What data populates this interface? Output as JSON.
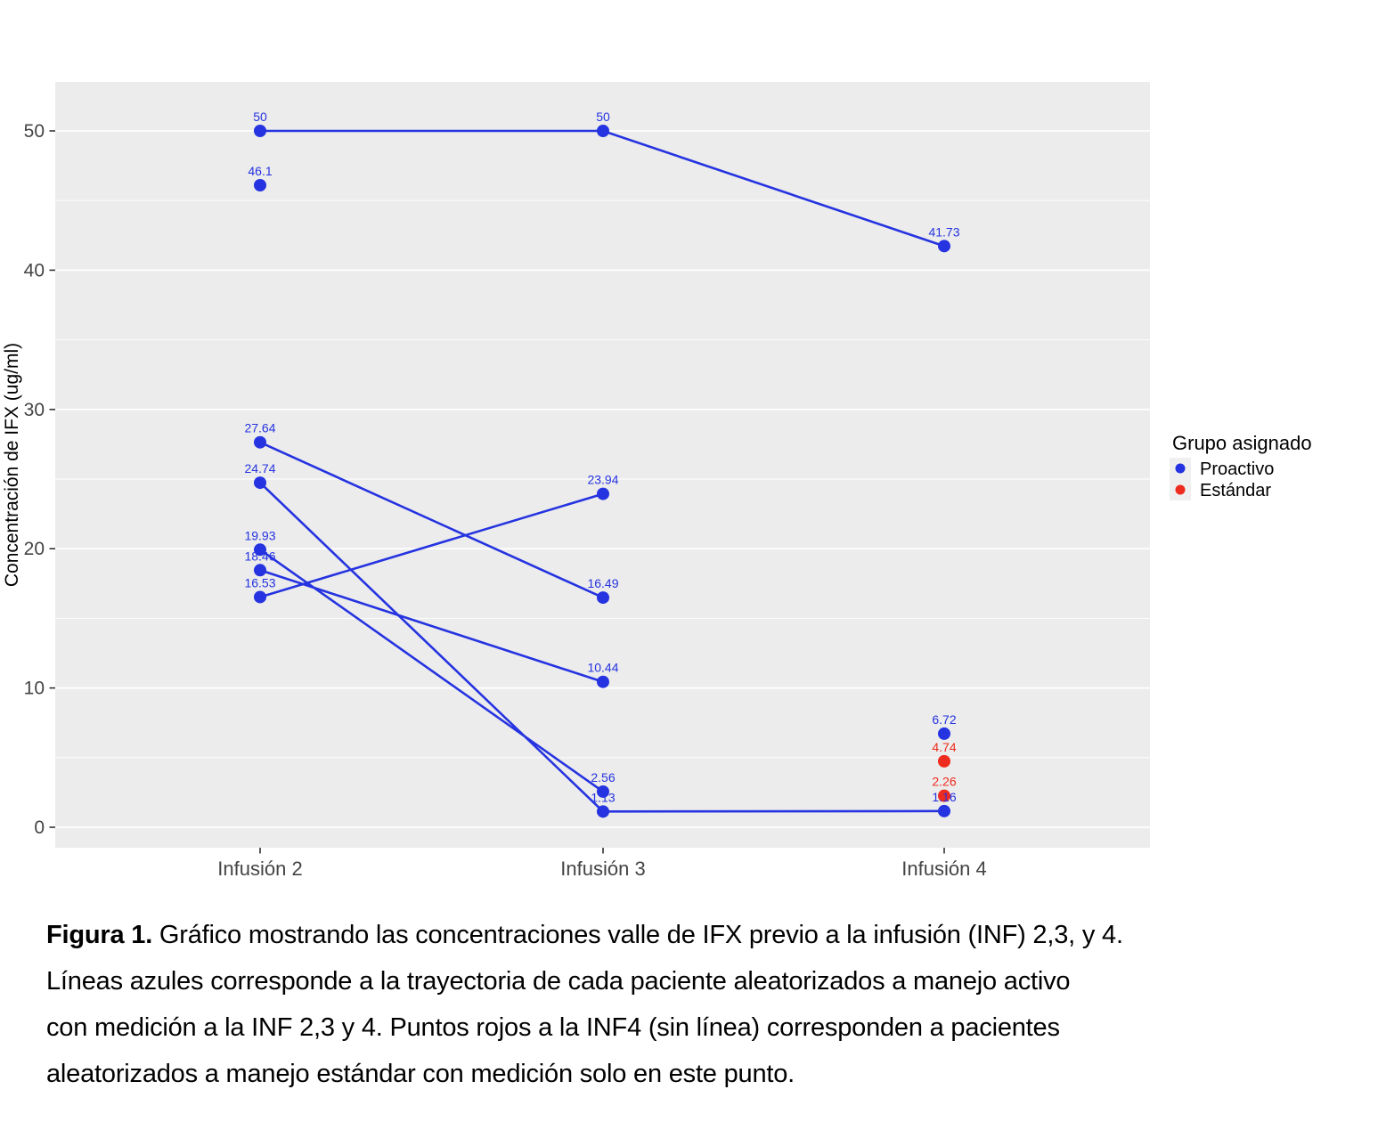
{
  "chart_data": {
    "type": "line",
    "title": "",
    "xlabel": "",
    "ylabel": "Concentración de IFX (ug/ml)",
    "categories": [
      "Infusión 2",
      "Infusión 3",
      "Infusión 4"
    ],
    "ylim": [
      0,
      50
    ],
    "yticks": [
      0,
      10,
      20,
      30,
      40,
      50
    ],
    "minor_ticks": [
      5,
      15,
      25,
      35,
      45
    ],
    "grid": true,
    "legend": {
      "title": "Grupo asignado",
      "position": "right",
      "entries": [
        {
          "label": "Proactivo",
          "color": "#2533E0"
        },
        {
          "label": "Estándar",
          "color": "#ED2B1E"
        }
      ]
    },
    "colors": {
      "Proactivo": "#2533E0",
      "Estándar": "#ED2B1E"
    },
    "series": [
      {
        "group": "Proactivo",
        "values": [
          50,
          50,
          41.73
        ]
      },
      {
        "group": "Proactivo",
        "values": [
          46.1,
          null,
          null
        ]
      },
      {
        "group": "Proactivo",
        "values": [
          27.64,
          16.49,
          null
        ]
      },
      {
        "group": "Proactivo",
        "values": [
          24.74,
          1.13,
          1.16
        ]
      },
      {
        "group": "Proactivo",
        "values": [
          19.93,
          2.56,
          null
        ]
      },
      {
        "group": "Proactivo",
        "values": [
          18.46,
          10.44,
          null
        ]
      },
      {
        "group": "Proactivo",
        "values": [
          16.53,
          23.94,
          null
        ]
      },
      {
        "group": "Proactivo",
        "values": [
          null,
          null,
          6.72
        ]
      },
      {
        "group": "Estándar",
        "values": [
          null,
          null,
          4.74
        ]
      },
      {
        "group": "Estándar",
        "values": [
          null,
          null,
          2.26
        ]
      }
    ]
  },
  "caption": {
    "label": "Figura 1.",
    "line1": " Gráfico mostrando las concentraciones valle de IFX previo a la infusión (INF) 2,3, y 4.",
    "line2": "Líneas azules corresponde a la trayectoria de cada paciente aleatorizados a manejo activo",
    "line3": "con medición a la INF 2,3 y 4. Puntos rojos a la INF4 (sin línea) corresponden a pacientes",
    "line4": "aleatorizados a manejo estándar con medición solo en este punto."
  }
}
